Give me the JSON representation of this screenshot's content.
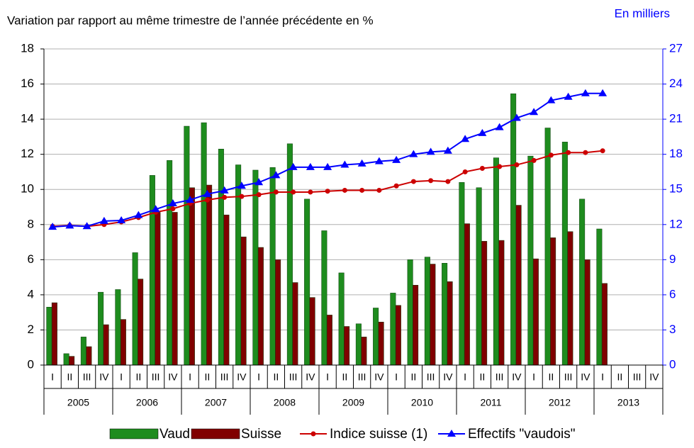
{
  "chart_data": {
    "type": "bar",
    "title": "Variation par rapport au même trimestre de l’année précédente en %",
    "y2_title": "En milliers",
    "categories": [
      "I",
      "II",
      "III",
      "IV",
      "I",
      "II",
      "III",
      "IV",
      "I",
      "II",
      "III",
      "IV",
      "I",
      "II",
      "III",
      "IV",
      "I",
      "II",
      "III",
      "IV",
      "I",
      "II",
      "III",
      "IV",
      "I",
      "II",
      "III",
      "IV",
      "I",
      "II",
      "III",
      "IV",
      "I",
      "II",
      "III",
      "IV"
    ],
    "years": [
      "2005",
      "2006",
      "2007",
      "2008",
      "2009",
      "2010",
      "2011",
      "2012",
      "2013"
    ],
    "ylim": [
      0,
      18
    ],
    "yticks": [
      0,
      2,
      4,
      6,
      8,
      10,
      12,
      14,
      16,
      18
    ],
    "y2lim": [
      0,
      27
    ],
    "y2ticks": [
      0,
      3,
      6,
      9,
      12,
      15,
      18,
      21,
      24,
      27
    ],
    "grid": true,
    "series": [
      {
        "name": "Vaud",
        "type": "bar",
        "color": "#1e8c1e",
        "values": [
          3.3,
          0.65,
          1.6,
          4.15,
          4.3,
          6.4,
          10.8,
          11.65,
          13.6,
          13.8,
          12.3,
          11.4,
          11.1,
          11.25,
          12.6,
          9.45,
          7.65,
          5.25,
          2.35,
          3.25,
          4.1,
          6.0,
          6.15,
          5.8,
          10.4,
          10.1,
          11.8,
          15.45,
          11.9,
          13.5,
          12.7,
          9.45,
          7.75,
          null,
          null,
          null
        ]
      },
      {
        "name": "Suisse",
        "type": "bar",
        "color": "#800000",
        "values": [
          3.55,
          0.5,
          1.05,
          2.3,
          2.6,
          4.9,
          8.7,
          8.7,
          10.1,
          10.25,
          8.55,
          7.3,
          6.7,
          6.0,
          4.7,
          3.85,
          2.85,
          2.2,
          1.6,
          2.45,
          3.4,
          4.55,
          5.75,
          4.75,
          8.05,
          7.05,
          7.1,
          9.1,
          6.05,
          7.25,
          7.6,
          6.0,
          4.65,
          null,
          null,
          null
        ]
      },
      {
        "name": "Indice suisse (1)",
        "type": "line",
        "marker": "circle",
        "color": "#cc0000",
        "values": [
          7.9,
          7.95,
          7.9,
          8.0,
          8.15,
          8.4,
          8.7,
          8.9,
          9.2,
          9.4,
          9.55,
          9.6,
          9.7,
          9.85,
          9.85,
          9.85,
          9.9,
          9.95,
          9.95,
          9.95,
          10.2,
          10.45,
          10.5,
          10.45,
          11.0,
          11.2,
          11.3,
          11.4,
          11.65,
          11.95,
          12.1,
          12.1,
          12.2,
          null,
          null,
          null
        ]
      },
      {
        "name": "Effectifs \"vaudois\"",
        "type": "line",
        "marker": "triangle",
        "axis": "y2",
        "color": "#0000ff",
        "values": [
          11.8,
          11.9,
          11.85,
          12.3,
          12.35,
          12.8,
          13.3,
          13.8,
          14.1,
          14.6,
          14.9,
          15.3,
          15.6,
          16.2,
          16.9,
          16.9,
          16.9,
          17.1,
          17.2,
          17.4,
          17.5,
          18.0,
          18.2,
          18.3,
          19.3,
          19.8,
          20.3,
          21.1,
          21.6,
          22.6,
          22.9,
          23.2,
          23.2,
          null,
          null,
          null
        ]
      }
    ]
  }
}
